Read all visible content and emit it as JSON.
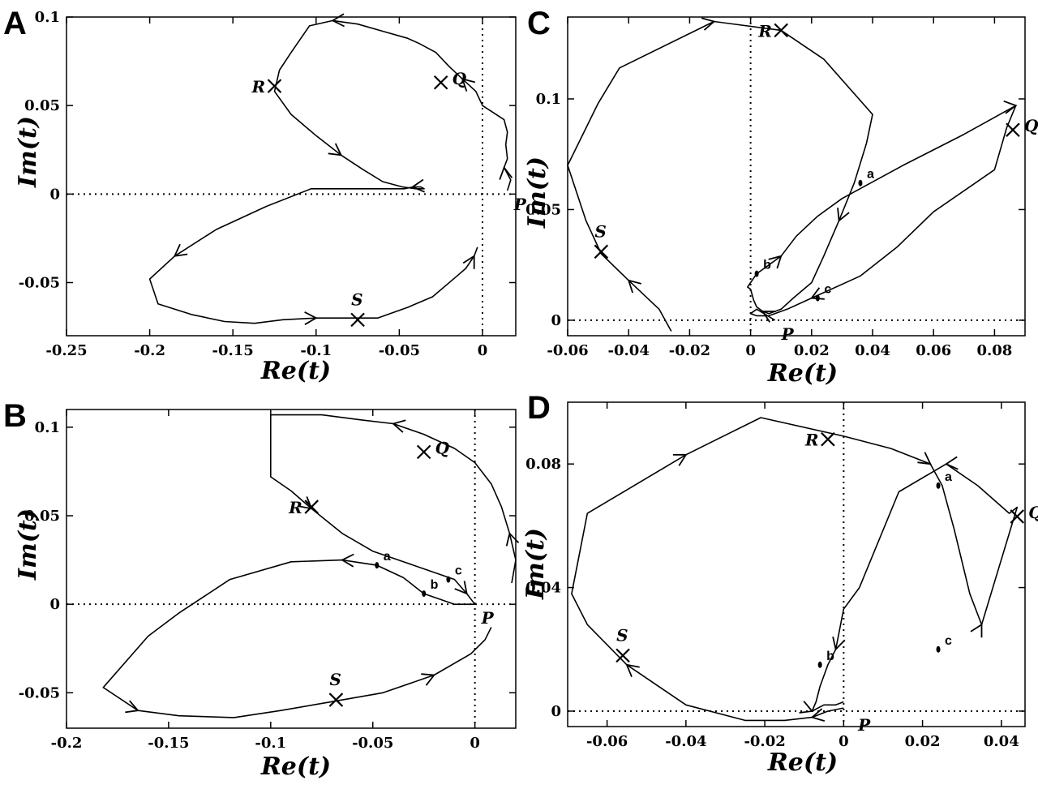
{
  "figure": {
    "description_labels": [
      "A",
      "B",
      "C",
      "D"
    ]
  },
  "chart_data": [
    {
      "panel": "A",
      "type": "line",
      "xlabel": "Re(t)",
      "ylabel": "Im(t)",
      "xlim": [
        -0.25,
        0.02
      ],
      "ylim": [
        -0.08,
        0.1
      ],
      "xticks": [
        -0.25,
        -0.2,
        -0.15,
        -0.1,
        -0.05,
        0
      ],
      "xtick_labels": [
        "-0.25",
        "-0.2",
        "-0.15",
        "-0.1",
        "-0.05",
        "0"
      ],
      "yticks": [
        -0.05,
        0,
        0.05,
        0.1
      ],
      "ytick_labels": [
        "-0.05",
        "0",
        "0.05",
        "0.1"
      ],
      "series": [
        {
          "name": "trajectory",
          "x": [
            0.015,
            0.017,
            0.013,
            0.015,
            0.014,
            0.015,
            0.013,
            0.0,
            -0.004,
            -0.012,
            -0.02,
            -0.028,
            -0.038,
            -0.045,
            -0.06,
            -0.075,
            -0.09,
            -0.104,
            -0.115,
            -0.122,
            -0.125,
            -0.115,
            -0.1,
            -0.085,
            -0.072,
            -0.06,
            -0.048,
            -0.04,
            -0.035,
            -0.037,
            -0.042,
            -0.047,
            -0.06,
            -0.08,
            -0.103,
            -0.13,
            -0.16,
            -0.185,
            -0.2,
            -0.195,
            -0.175,
            -0.155,
            -0.137,
            -0.12,
            -0.1,
            -0.075,
            -0.063,
            -0.045,
            -0.03,
            -0.015,
            -0.01,
            -0.005,
            -0.003
          ],
          "y": [
            0.002,
            0.008,
            0.015,
            0.02,
            0.028,
            0.035,
            0.042,
            0.05,
            0.058,
            0.065,
            0.072,
            0.08,
            0.085,
            0.088,
            0.092,
            0.096,
            0.098,
            0.095,
            0.08,
            0.07,
            0.058,
            0.045,
            0.033,
            0.022,
            0.014,
            0.007,
            0.004,
            0.003,
            0.003,
            0.004,
            0.004,
            0.003,
            0.003,
            0.003,
            0.003,
            -0.007,
            -0.02,
            -0.035,
            -0.048,
            -0.062,
            -0.068,
            -0.072,
            -0.073,
            -0.071,
            -0.07,
            -0.07,
            -0.07,
            -0.064,
            -0.058,
            -0.046,
            -0.042,
            -0.035,
            -0.03
          ]
        }
      ],
      "annotations": [
        {
          "label": "R",
          "marker": "x",
          "x": -0.125,
          "y": 0.061
        },
        {
          "label": "Q",
          "marker": "x",
          "x": -0.025,
          "y": 0.063
        },
        {
          "label": "S",
          "marker": "x",
          "x": -0.075,
          "y": -0.071
        },
        {
          "label": "P",
          "marker": "none",
          "x": 0.015,
          "y": 0.002
        }
      ]
    },
    {
      "panel": "B",
      "type": "line",
      "xlabel": "Re(t)",
      "ylabel": "Im(t)",
      "xlim": [
        -0.2,
        0.02
      ],
      "ylim": [
        -0.07,
        0.11
      ],
      "xticks": [
        -0.2,
        -0.15,
        -0.1,
        -0.05,
        0
      ],
      "xtick_labels": [
        "-0.2",
        "-0.15",
        "-0.1",
        "-0.05",
        "0"
      ],
      "yticks": [
        -0.05,
        0,
        0.05,
        0.1
      ],
      "ytick_labels": [
        "-0.05",
        "0",
        "0.05",
        "0.1"
      ],
      "series": [
        {
          "name": "trajectory",
          "x": [
            0.018,
            0.02,
            0.017,
            0.013,
            0.008,
            0.0,
            -0.01,
            -0.025,
            -0.04,
            -0.055,
            -0.075,
            -0.1,
            -0.1,
            -0.09,
            -0.08,
            -0.065,
            -0.05,
            -0.035,
            -0.025,
            -0.01,
            -0.004,
            0.0,
            -0.01,
            -0.025,
            -0.035,
            -0.048,
            -0.065,
            -0.09,
            -0.12,
            -0.145,
            -0.16,
            -0.182,
            -0.165,
            -0.145,
            -0.118,
            -0.095,
            -0.07,
            -0.045,
            -0.02,
            -0.002,
            0.005,
            0.008
          ],
          "y": [
            0.012,
            0.025,
            0.04,
            0.055,
            0.068,
            0.08,
            0.088,
            0.096,
            0.102,
            0.104,
            0.107,
            0.107,
            0.072,
            0.064,
            0.054,
            0.04,
            0.03,
            0.024,
            0.02,
            0.014,
            0.006,
            0.0,
            0.0,
            0.006,
            0.015,
            0.022,
            0.025,
            0.024,
            0.014,
            -0.005,
            -0.018,
            -0.047,
            -0.06,
            -0.063,
            -0.064,
            -0.06,
            -0.055,
            -0.05,
            -0.04,
            -0.028,
            -0.02,
            -0.013
          ]
        }
      ],
      "annotations": [
        {
          "label": "R",
          "marker": "x",
          "x": -0.08,
          "y": 0.055
        },
        {
          "label": "Q",
          "marker": "x",
          "x": -0.025,
          "y": 0.086
        },
        {
          "label": "S",
          "marker": "x",
          "x": -0.068,
          "y": -0.054
        },
        {
          "label": "P",
          "marker": "none",
          "x": 0.0,
          "y": 0.0
        },
        {
          "label": "a",
          "marker": "dot",
          "x": -0.048,
          "y": 0.022
        },
        {
          "label": "b",
          "marker": "dot",
          "x": -0.025,
          "y": 0.006
        },
        {
          "label": "c",
          "marker": "dot",
          "x": -0.013,
          "y": 0.014
        }
      ]
    },
    {
      "panel": "C",
      "type": "line",
      "xlabel": "Re(t)",
      "ylabel": "Im(t)",
      "xlim": [
        -0.06,
        0.09
      ],
      "ylim": [
        -0.007,
        0.137
      ],
      "xticks": [
        -0.06,
        -0.04,
        -0.02,
        0,
        0.02,
        0.04,
        0.06,
        0.08
      ],
      "xtick_labels": [
        "-0.06",
        "-0.04",
        "-0.02",
        "0",
        "0.02",
        "0.04",
        "0.06",
        "0.08"
      ],
      "yticks": [
        0,
        0.05,
        0.1
      ],
      "ytick_labels": [
        "0",
        "0.05",
        "0.1"
      ],
      "series": [
        {
          "name": "trajectory",
          "x": [
            -0.026,
            -0.03,
            -0.04,
            -0.049,
            -0.054,
            -0.06,
            -0.05,
            -0.043,
            -0.012,
            0.01,
            0.024,
            0.04,
            0.038,
            0.034,
            0.029,
            0.024,
            0.02,
            0.014,
            0.01,
            0.006,
            0.004,
            0.002,
            0.001,
            0.0,
            -0.001,
            0.002,
            0.01,
            0.015,
            0.022,
            0.03,
            0.05,
            0.07,
            0.087,
            0.084,
            0.08,
            0.06,
            0.048,
            0.036,
            0.02,
            0.012,
            0.006,
            0.002,
            0.0,
            0.002,
            0.008
          ],
          "y": [
            -0.005,
            0.005,
            0.018,
            0.03,
            0.045,
            0.07,
            0.098,
            0.114,
            0.135,
            0.131,
            0.118,
            0.093,
            0.08,
            0.062,
            0.045,
            0.029,
            0.017,
            0.01,
            0.005,
            0.003,
            0.004,
            0.006,
            0.009,
            0.014,
            0.015,
            0.021,
            0.029,
            0.038,
            0.047,
            0.055,
            0.07,
            0.084,
            0.097,
            0.087,
            0.068,
            0.049,
            0.033,
            0.02,
            0.01,
            0.005,
            0.002,
            0.002,
            0.003,
            0.005,
            0.0
          ]
        }
      ],
      "annotations": [
        {
          "label": "R",
          "marker": "x",
          "x": 0.01,
          "y": 0.131
        },
        {
          "label": "Q",
          "marker": "x",
          "x": 0.086,
          "y": 0.086
        },
        {
          "label": "S",
          "marker": "x",
          "x": -0.049,
          "y": 0.031
        },
        {
          "label": "P",
          "marker": "none",
          "x": 0.008,
          "y": 0.0
        },
        {
          "label": "a",
          "marker": "dot",
          "x": 0.036,
          "y": 0.062
        },
        {
          "label": "b",
          "marker": "dot",
          "x": 0.002,
          "y": 0.021
        },
        {
          "label": "c",
          "marker": "dot",
          "x": 0.022,
          "y": 0.01
        }
      ]
    },
    {
      "panel": "D",
      "type": "line",
      "xlabel": "Re(t)",
      "ylabel": "Im(t)",
      "xlim": [
        -0.07,
        0.046
      ],
      "ylim": [
        -0.005,
        0.1
      ],
      "xticks": [
        -0.06,
        -0.04,
        -0.02,
        0,
        0.02,
        0.04
      ],
      "xtick_labels": [
        "-0.06",
        "-0.04",
        "-0.02",
        "0",
        "0.02",
        "0.04"
      ],
      "yticks": [
        0,
        0.04,
        0.08
      ],
      "ytick_labels": [
        "0",
        "0.04",
        "0.08"
      ],
      "series": [
        {
          "name": "trajectory",
          "x": [
            0.0,
            -0.004,
            -0.008,
            -0.015,
            -0.025,
            -0.04,
            -0.055,
            -0.065,
            -0.069,
            -0.065,
            -0.04,
            -0.021,
            0.0,
            0.012,
            0.022,
            0.025,
            0.028,
            0.032,
            0.035,
            0.044,
            0.042,
            0.034,
            0.026,
            0.014,
            0.004,
            0.0,
            -0.002,
            -0.004,
            -0.006,
            -0.007,
            -0.008,
            -0.005,
            -0.002,
            0.0
          ],
          "y": [
            0.001,
            0.0,
            -0.002,
            -0.003,
            -0.003,
            0.002,
            0.015,
            0.028,
            0.038,
            0.064,
            0.083,
            0.095,
            0.089,
            0.085,
            0.08,
            0.073,
            0.059,
            0.038,
            0.028,
            0.066,
            0.064,
            0.073,
            0.08,
            0.071,
            0.04,
            0.033,
            0.02,
            0.015,
            0.008,
            0.003,
            0.0,
            0.002,
            0.002,
            0.003
          ]
        }
      ],
      "annotations": [
        {
          "label": "R",
          "marker": "x",
          "x": -0.004,
          "y": 0.088
        },
        {
          "label": "Q",
          "marker": "x",
          "x": 0.044,
          "y": 0.063
        },
        {
          "label": "S",
          "marker": "x",
          "x": -0.056,
          "y": 0.018
        },
        {
          "label": "P",
          "marker": "none",
          "x": 0.002,
          "y": 0.0
        },
        {
          "label": "a",
          "marker": "dot",
          "x": 0.024,
          "y": 0.073
        },
        {
          "label": "b",
          "marker": "dot",
          "x": -0.006,
          "y": 0.015
        },
        {
          "label": "c",
          "marker": "dot",
          "x": 0.024,
          "y": 0.02
        }
      ]
    }
  ]
}
